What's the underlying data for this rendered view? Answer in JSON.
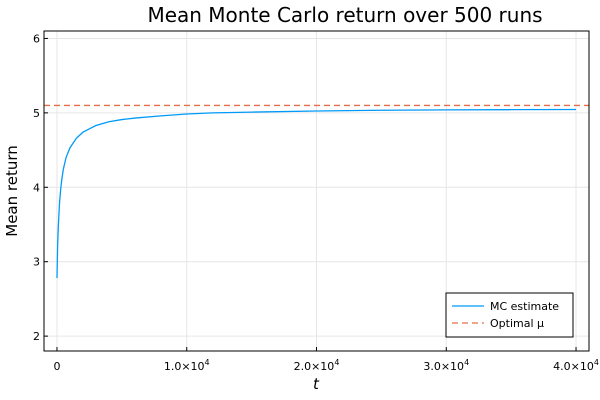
{
  "chart_data": {
    "type": "line",
    "title": "Mean Monte Carlo return over 500 runs",
    "xlabel": "t",
    "ylabel": "Mean return",
    "xlim": [
      -1000,
      41000
    ],
    "ylim": [
      1.8,
      6.1
    ],
    "x_ticks": [
      {
        "value": 0,
        "label": "0"
      },
      {
        "value": 10000,
        "label": "1.0×10",
        "sup": "4"
      },
      {
        "value": 20000,
        "label": "2.0×10",
        "sup": "4"
      },
      {
        "value": 30000,
        "label": "3.0×10",
        "sup": "4"
      },
      {
        "value": 40000,
        "label": "4.0×10",
        "sup": "4"
      }
    ],
    "y_ticks": [
      2,
      3,
      4,
      5,
      6
    ],
    "grid": true,
    "legend_position": "bottom-right",
    "series": [
      {
        "name": "MC estimate",
        "color": "#009af9",
        "style": "solid",
        "x": [
          0,
          50,
          100,
          200,
          300,
          400,
          500,
          700,
          1000,
          1500,
          2000,
          3000,
          4000,
          5000,
          6000,
          8000,
          10000,
          12000,
          15000,
          20000,
          25000,
          30000,
          35000,
          40000
        ],
        "y": [
          2.78,
          3.22,
          3.46,
          3.8,
          4.0,
          4.14,
          4.25,
          4.4,
          4.53,
          4.66,
          4.74,
          4.83,
          4.88,
          4.91,
          4.93,
          4.96,
          4.985,
          5.0,
          5.01,
          5.025,
          5.035,
          5.04,
          5.043,
          5.045
        ]
      },
      {
        "name": "Optimal μ",
        "color": "#e26f46",
        "style": "dashed",
        "x": [
          -1000,
          41000
        ],
        "y": [
          5.1,
          5.1
        ]
      }
    ]
  }
}
